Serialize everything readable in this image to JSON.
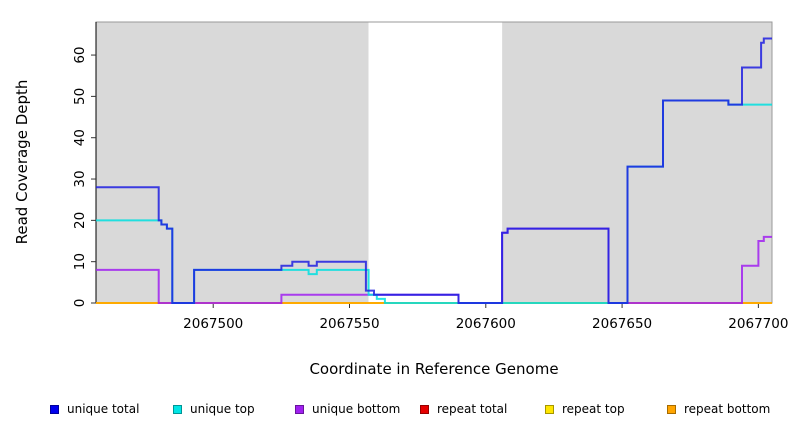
{
  "chart_data": {
    "type": "line",
    "subtype": "step-coverage",
    "title": "",
    "xlabel": "Coordinate in Reference Genome",
    "ylabel": "Read Coverage Depth",
    "xlim": [
      2067457,
      2067705
    ],
    "ylim": [
      0,
      68
    ],
    "x_ticks": [
      2067500,
      2067550,
      2067600,
      2067650,
      2067700
    ],
    "y_ticks": [
      0,
      10,
      20,
      30,
      40,
      50,
      60
    ],
    "grid": false,
    "plot_background": "#D9D9D9",
    "background_regions": [
      {
        "name": "shaded-left",
        "x0": 2067457,
        "x1": 2067557,
        "color": "#D9D9D9"
      },
      {
        "name": "unshaded-gap",
        "x0": 2067557,
        "x1": 2067606,
        "color": "#FFFFFF"
      },
      {
        "name": "shaded-right",
        "x0": 2067606,
        "x1": 2067705,
        "color": "#D9D9D9"
      }
    ],
    "series": [
      {
        "name": "repeat total",
        "color": "#E60000",
        "step_points": [
          [
            2067457,
            0
          ],
          [
            2067705,
            0
          ]
        ]
      },
      {
        "name": "repeat top",
        "color": "#FFE600",
        "step_points": [
          [
            2067457,
            0
          ],
          [
            2067705,
            0
          ]
        ]
      },
      {
        "name": "repeat bottom",
        "color": "#FFA500",
        "step_points": [
          [
            2067457,
            0
          ],
          [
            2067705,
            0
          ]
        ]
      },
      {
        "name": "unique bottom",
        "color": "#A020F0",
        "step_points": [
          [
            2067457,
            8
          ],
          [
            2067480,
            0
          ],
          [
            2067525,
            2
          ],
          [
            2067590,
            0
          ],
          [
            2067606,
            17
          ],
          [
            2067608,
            18
          ],
          [
            2067645,
            0
          ],
          [
            2067694,
            9
          ],
          [
            2067700,
            15
          ],
          [
            2067702,
            16
          ],
          [
            2067705,
            16
          ]
        ]
      },
      {
        "name": "unique top",
        "color": "#00DFDF",
        "step_points": [
          [
            2067457,
            20
          ],
          [
            2067481,
            19
          ],
          [
            2067483,
            18
          ],
          [
            2067485,
            0
          ],
          [
            2067493,
            8
          ],
          [
            2067535,
            7
          ],
          [
            2067538,
            8
          ],
          [
            2067557,
            2
          ],
          [
            2067560,
            1
          ],
          [
            2067563,
            0
          ],
          [
            2067652,
            33
          ],
          [
            2067665,
            49
          ],
          [
            2067689,
            48
          ],
          [
            2067705,
            48
          ]
        ]
      },
      {
        "name": "unique total",
        "color": "#1F1FE0",
        "step_points": [
          [
            2067457,
            28
          ],
          [
            2067480,
            20
          ],
          [
            2067481,
            19
          ],
          [
            2067483,
            18
          ],
          [
            2067485,
            0
          ],
          [
            2067493,
            8
          ],
          [
            2067525,
            9
          ],
          [
            2067529,
            10
          ],
          [
            2067535,
            9
          ],
          [
            2067538,
            10
          ],
          [
            2067556,
            3
          ],
          [
            2067559,
            2
          ],
          [
            2067590,
            0
          ],
          [
            2067606,
            17
          ],
          [
            2067608,
            18
          ],
          [
            2067645,
            0
          ],
          [
            2067652,
            33
          ],
          [
            2067665,
            49
          ],
          [
            2067689,
            48
          ],
          [
            2067694,
            57
          ],
          [
            2067701,
            63
          ],
          [
            2067702,
            64
          ],
          [
            2067705,
            64
          ]
        ]
      }
    ],
    "legend": [
      {
        "label": "unique total",
        "color": "#0000EE"
      },
      {
        "label": "unique top",
        "color": "#00E5E5"
      },
      {
        "label": "unique bottom",
        "color": "#A020F0"
      },
      {
        "label": "repeat total",
        "color": "#E60000"
      },
      {
        "label": "repeat top",
        "color": "#FFE600"
      },
      {
        "label": "repeat bottom",
        "color": "#FFA500"
      }
    ],
    "legend_position": "bottom"
  }
}
